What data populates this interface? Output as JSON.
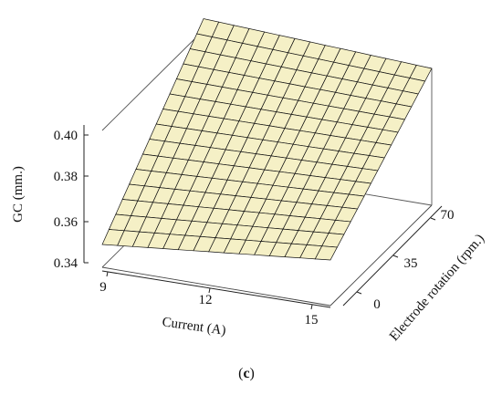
{
  "chart_data": {
    "type": "surface",
    "x": {
      "label": "Current (A)",
      "ticks": [
        9,
        12,
        15
      ],
      "range": [
        9,
        15
      ]
    },
    "y": {
      "label": "Electrode rotation (rpm.)",
      "ticks": [
        0,
        35,
        70
      ],
      "range": [
        0,
        70
      ]
    },
    "z": {
      "label": "GC (mm.)",
      "ticks": [
        "0.34",
        "0.36",
        "0.38",
        "0.40"
      ],
      "range": [
        0.34,
        0.4
      ]
    },
    "surface_corners": [
      {
        "current": 9,
        "rotation": 0,
        "gc": 0.35
      },
      {
        "current": 9,
        "rotation": 70,
        "gc": 0.405
      },
      {
        "current": 15,
        "rotation": 70,
        "gc": 0.4
      },
      {
        "current": 15,
        "rotation": 0,
        "gc": 0.36
      }
    ],
    "grid_divisions": 15,
    "surface_color": "#f5f0c6",
    "mesh_color": "#111111"
  },
  "caption": {
    "open": "(",
    "letter": "c",
    "close": ")"
  }
}
